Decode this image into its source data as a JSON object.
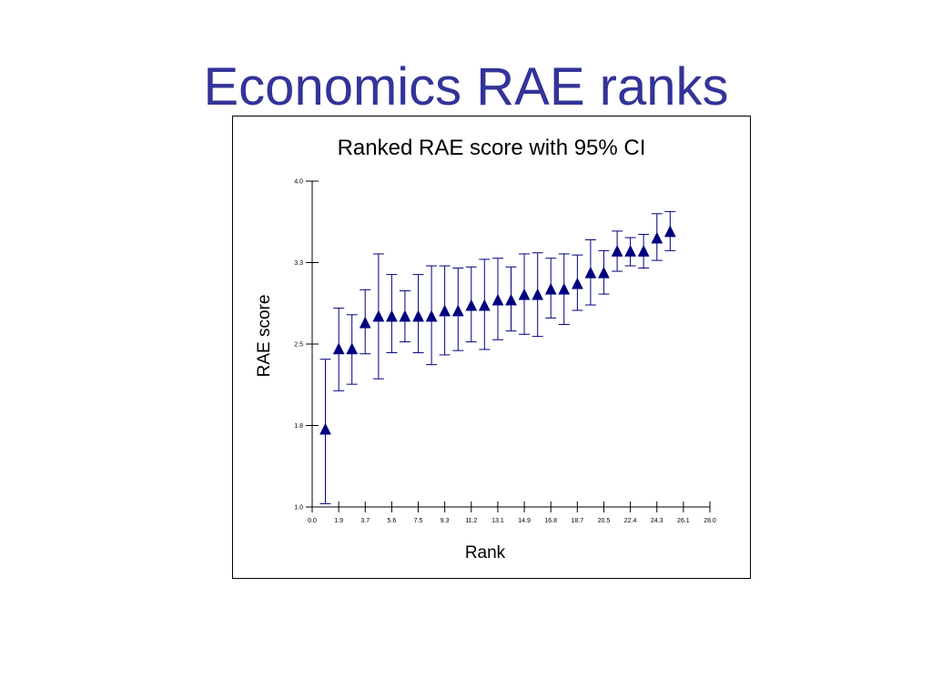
{
  "slide": {
    "title": "Economics RAE ranks"
  },
  "colors": {
    "title": "#333399",
    "marker": "#000080",
    "errorbar": "#000080",
    "axis": "#000000"
  },
  "chart_data": {
    "type": "scatter",
    "title": "Ranked RAE score with 95% CI",
    "xlabel": "Rank",
    "ylabel": "RAE score",
    "xlim": [
      0.0,
      28.0
    ],
    "ylim": [
      1.0,
      4.0
    ],
    "x_ticks": [
      "0.0",
      "1.9",
      "3.7",
      "5.6",
      "7.5",
      "9.3",
      "11.2",
      "13.1",
      "14.9",
      "16.8",
      "18.7",
      "20.5",
      "22.4",
      "24.3",
      "26.1",
      "28.0"
    ],
    "y_ticks": [
      {
        "value": 1.0,
        "label": "1.0"
      },
      {
        "value": 1.75,
        "label": "1.8"
      },
      {
        "value": 2.5,
        "label": "2.5"
      },
      {
        "value": 3.25,
        "label": "3.3"
      },
      {
        "value": 4.0,
        "label": "4.0"
      }
    ],
    "grid": false,
    "marker": "triangle",
    "points": [
      {
        "x": 0.93,
        "y": 1.71,
        "lo": 1.03,
        "hi": 2.36
      },
      {
        "x": 1.87,
        "y": 2.45,
        "lo": 2.07,
        "hi": 2.83
      },
      {
        "x": 2.8,
        "y": 2.45,
        "lo": 2.13,
        "hi": 2.77
      },
      {
        "x": 3.73,
        "y": 2.69,
        "lo": 2.41,
        "hi": 3.0
      },
      {
        "x": 4.67,
        "y": 2.75,
        "lo": 2.18,
        "hi": 3.33
      },
      {
        "x": 5.6,
        "y": 2.75,
        "lo": 2.42,
        "hi": 3.14
      },
      {
        "x": 6.53,
        "y": 2.75,
        "lo": 2.52,
        "hi": 2.99
      },
      {
        "x": 7.47,
        "y": 2.75,
        "lo": 2.42,
        "hi": 3.14
      },
      {
        "x": 8.4,
        "y": 2.75,
        "lo": 2.31,
        "hi": 3.22
      },
      {
        "x": 9.33,
        "y": 2.8,
        "lo": 2.4,
        "hi": 3.22
      },
      {
        "x": 10.27,
        "y": 2.8,
        "lo": 2.44,
        "hi": 3.2
      },
      {
        "x": 11.2,
        "y": 2.85,
        "lo": 2.52,
        "hi": 3.21
      },
      {
        "x": 12.13,
        "y": 2.85,
        "lo": 2.45,
        "hi": 3.28
      },
      {
        "x": 13.07,
        "y": 2.9,
        "lo": 2.54,
        "hi": 3.29
      },
      {
        "x": 14.0,
        "y": 2.9,
        "lo": 2.62,
        "hi": 3.21
      },
      {
        "x": 14.93,
        "y": 2.95,
        "lo": 2.59,
        "hi": 3.33
      },
      {
        "x": 15.87,
        "y": 2.95,
        "lo": 2.57,
        "hi": 3.34
      },
      {
        "x": 16.8,
        "y": 3.0,
        "lo": 2.74,
        "hi": 3.29
      },
      {
        "x": 17.73,
        "y": 3.0,
        "lo": 2.68,
        "hi": 3.33
      },
      {
        "x": 18.67,
        "y": 3.05,
        "lo": 2.81,
        "hi": 3.32
      },
      {
        "x": 19.6,
        "y": 3.15,
        "lo": 2.86,
        "hi": 3.46
      },
      {
        "x": 20.53,
        "y": 3.15,
        "lo": 2.96,
        "hi": 3.36
      },
      {
        "x": 21.47,
        "y": 3.35,
        "lo": 3.17,
        "hi": 3.54
      },
      {
        "x": 22.4,
        "y": 3.35,
        "lo": 3.22,
        "hi": 3.48
      },
      {
        "x": 23.33,
        "y": 3.35,
        "lo": 3.2,
        "hi": 3.51
      },
      {
        "x": 24.27,
        "y": 3.47,
        "lo": 3.27,
        "hi": 3.7
      },
      {
        "x": 25.2,
        "y": 3.53,
        "lo": 3.36,
        "hi": 3.72
      }
    ]
  }
}
